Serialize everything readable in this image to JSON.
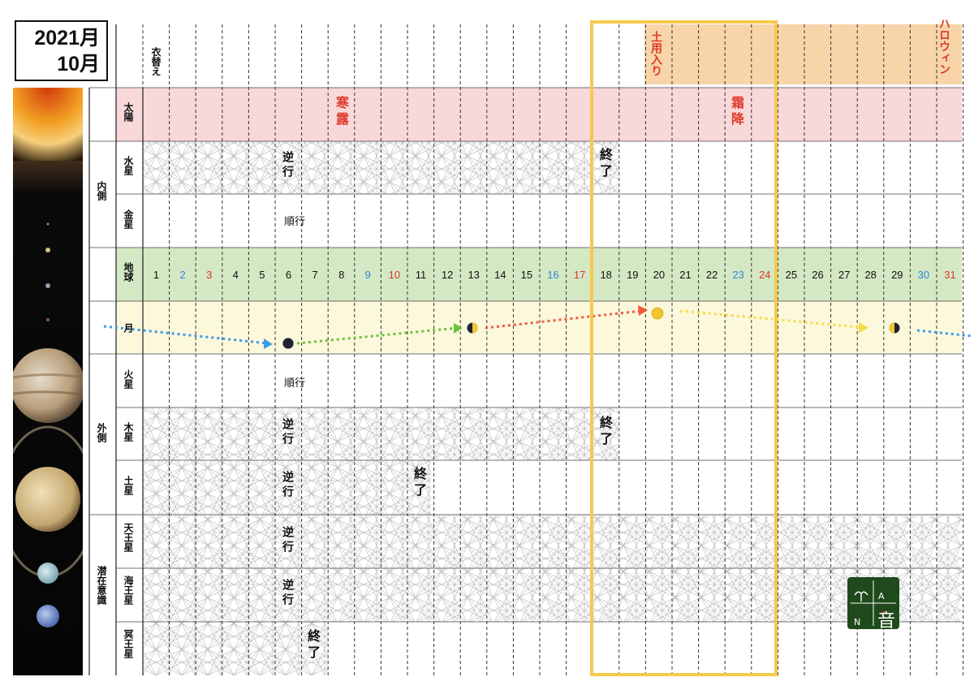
{
  "header": {
    "year": "2021月",
    "month": "10月"
  },
  "top_events": {
    "koromogae": "衣替え",
    "doyo": "土用入り",
    "halloween": "ハロウィン"
  },
  "groups": {
    "inner": "内側",
    "outer": "外側",
    "subconscious": "潜在意識"
  },
  "rows": {
    "sun": "太陽",
    "mercury": "水星",
    "venus": "金星",
    "earth": "地球",
    "moon": "月",
    "mars": "火星",
    "jupiter": "木星",
    "saturn": "土星",
    "uranus": "天王星",
    "neptune": "海王星",
    "pluto": "冥王星"
  },
  "solar_terms": {
    "kanro": "寒露",
    "soko": "霜降"
  },
  "notes": {
    "retrograde": "逆行",
    "direct": "順行",
    "end": "終了"
  },
  "days": [
    {
      "d": "1",
      "c": "#111111"
    },
    {
      "d": "2",
      "c": "#2f86d6"
    },
    {
      "d": "3",
      "c": "#d8382a"
    },
    {
      "d": "4",
      "c": "#111111"
    },
    {
      "d": "5",
      "c": "#111111"
    },
    {
      "d": "6",
      "c": "#111111"
    },
    {
      "d": "7",
      "c": "#111111"
    },
    {
      "d": "8",
      "c": "#111111"
    },
    {
      "d": "9",
      "c": "#2f86d6"
    },
    {
      "d": "10",
      "c": "#d8382a"
    },
    {
      "d": "11",
      "c": "#111111"
    },
    {
      "d": "12",
      "c": "#111111"
    },
    {
      "d": "13",
      "c": "#111111"
    },
    {
      "d": "14",
      "c": "#111111"
    },
    {
      "d": "15",
      "c": "#111111"
    },
    {
      "d": "16",
      "c": "#2f86d6"
    },
    {
      "d": "17",
      "c": "#d8382a"
    },
    {
      "d": "18",
      "c": "#111111"
    },
    {
      "d": "19",
      "c": "#111111"
    },
    {
      "d": "20",
      "c": "#111111"
    },
    {
      "d": "21",
      "c": "#111111"
    },
    {
      "d": "22",
      "c": "#111111"
    },
    {
      "d": "23",
      "c": "#2f86d6"
    },
    {
      "d": "24",
      "c": "#d8382a"
    },
    {
      "d": "25",
      "c": "#111111"
    },
    {
      "d": "26",
      "c": "#111111"
    },
    {
      "d": "27",
      "c": "#111111"
    },
    {
      "d": "28",
      "c": "#111111"
    },
    {
      "d": "29",
      "c": "#111111"
    },
    {
      "d": "30",
      "c": "#2f86d6"
    },
    {
      "d": "31",
      "c": "#d8382a"
    }
  ],
  "logo": {
    "a": "A",
    "n": "N",
    "sound": "音"
  },
  "colors": {
    "sun_band": "#f8d8d8",
    "earth_band": "#d4e8c4",
    "moon_band": "#fcf8dc",
    "doyo_band": "#f7d5a8",
    "highlight": "#f5c94c",
    "event_red": "#e03a2a",
    "logo_green": "#1f4a1c"
  }
}
